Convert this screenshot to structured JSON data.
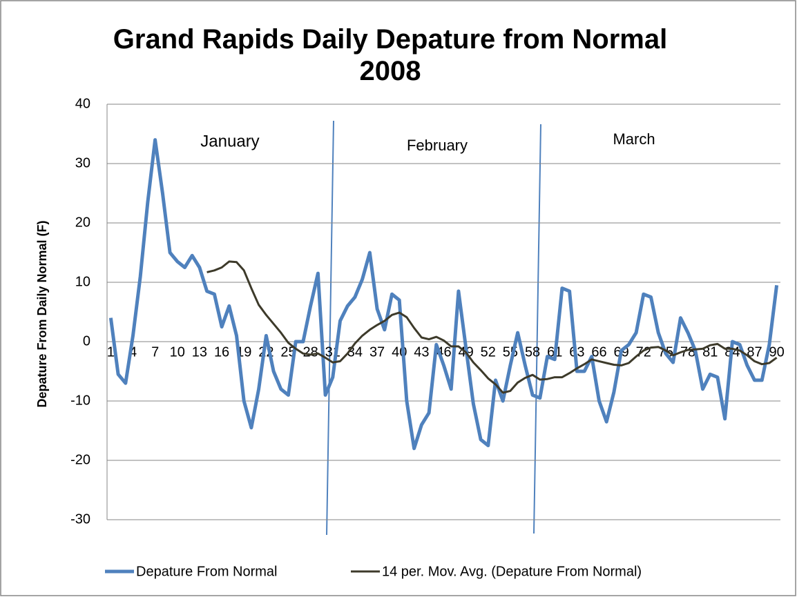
{
  "chart_data": {
    "type": "line",
    "title": "Grand Rapids Daily Depature from Normal 2008",
    "y_label": "Depature From Daily Normal (F)",
    "annotations": [
      "January",
      "February",
      "March"
    ],
    "categories": [
      "1",
      null,
      null,
      "4",
      null,
      null,
      "7",
      null,
      null,
      "10",
      null,
      null,
      "13",
      null,
      null,
      "16",
      null,
      null,
      "19",
      null,
      null,
      "22",
      null,
      null,
      "25",
      null,
      null,
      "28",
      null,
      null,
      "31",
      null,
      null,
      "34",
      null,
      null,
      "37",
      null,
      null,
      "40",
      null,
      null,
      "43",
      null,
      null,
      "46",
      null,
      null,
      "49",
      null,
      null,
      "52",
      null,
      null,
      "55",
      null,
      null,
      "58",
      null,
      null,
      "61",
      null,
      null,
      "63",
      null,
      null,
      "66",
      null,
      null,
      "69",
      null,
      null,
      "72",
      null,
      null,
      "75",
      null,
      null,
      "78",
      null,
      null,
      "81",
      null,
      null,
      "84",
      null,
      null,
      "87",
      null,
      null,
      "90"
    ],
    "series": [
      {
        "name": "Depature From Normal",
        "color": "#4f81bd",
        "values": [
          4,
          -5.5,
          -7,
          1,
          11,
          23.5,
          34,
          25,
          15,
          13.5,
          12.5,
          14.5,
          12.5,
          8.5,
          8,
          2.5,
          6,
          1,
          -10,
          -14.5,
          -8,
          1,
          -5,
          -8,
          -9,
          0,
          0,
          6,
          11.5,
          -9,
          -6,
          3.5,
          6,
          7.5,
          10.5,
          15,
          5.5,
          2,
          8,
          7,
          -10,
          -18,
          -14,
          -12,
          -0.5,
          -4,
          -8,
          8.5,
          -1,
          -10.5,
          -16.5,
          -17.5,
          -6.5,
          -10,
          -4,
          1.5,
          -4,
          -9,
          -9.5,
          -2.5,
          -3,
          9,
          8.5,
          -5,
          -5,
          -2.5,
          -10,
          -13.5,
          -8.5,
          -1.5,
          -0.5,
          1.5,
          8,
          7.5,
          1.5,
          -2,
          -3.5,
          4,
          1.5,
          -1.5,
          -8,
          -5.5,
          -6,
          -13,
          0,
          -0.5,
          -4,
          -6.5,
          -6.5,
          -0.5,
          9.5
        ]
      },
      {
        "name": "14 per. Mov. Avg. (Depature From Normal)",
        "color": "#3d3a2a",
        "values": [
          null,
          null,
          null,
          null,
          null,
          null,
          null,
          null,
          null,
          null,
          null,
          null,
          null,
          11.7,
          12,
          12.5,
          13.5,
          13.4,
          12,
          9,
          6.2,
          4.5,
          3,
          1.5,
          -0.2,
          -1.2,
          -2,
          -2.2,
          -2,
          -2.7,
          -3.5,
          -3.3,
          -2,
          -0.3,
          1,
          2,
          2.8,
          3.5,
          4.5,
          4.9,
          4.1,
          2.3,
          0.7,
          0.4,
          0.8,
          0.2,
          -0.8,
          -0.8,
          -1.8,
          -3.5,
          -4.8,
          -6.2,
          -7.2,
          -8.6,
          -8.3,
          -6.9,
          -6.1,
          -5.6,
          -6.4,
          -6.3,
          -6,
          -6,
          -5.3,
          -4.5,
          -3.8,
          -3,
          -3.3,
          -3.6,
          -3.9,
          -4,
          -3.6,
          -2.5,
          -1.5,
          -1,
          -0.9,
          -1.5,
          -2.3,
          -1.8,
          -1.4,
          -1.3,
          -1.2,
          -0.6,
          -0.4,
          -1.2,
          -1.2,
          -1.5,
          -2.3,
          -3.3,
          -3.8,
          -3.6,
          -2.7
        ]
      }
    ],
    "ylim": [
      -30,
      40
    ],
    "yticks": [
      -30,
      -20,
      -10,
      0,
      10,
      20,
      30,
      40
    ],
    "grid": true,
    "legend": "bottom"
  }
}
